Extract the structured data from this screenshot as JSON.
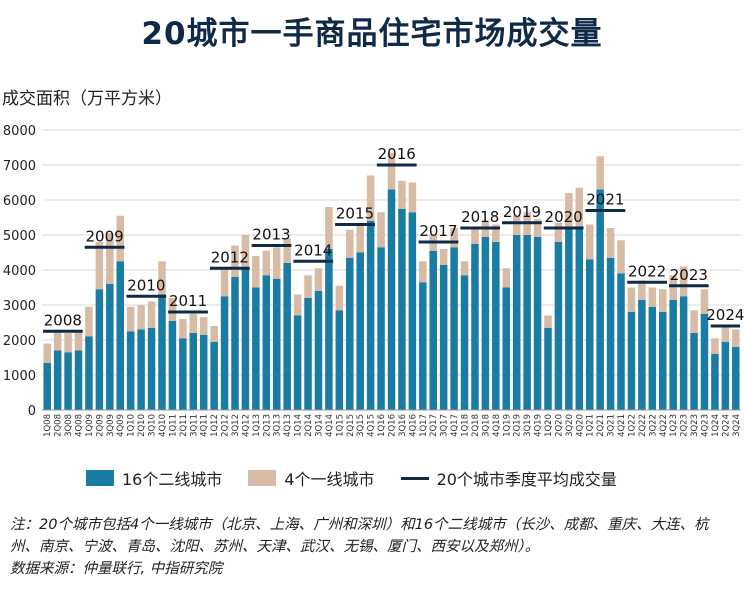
{
  "title": "20城市一手商品住宅市场成交量",
  "ylabel": "成交面积（万平方米）",
  "legend": {
    "tier2": "16个二线城市",
    "tier1": "4个一线城市",
    "avg": "20个城市季度平均成交量"
  },
  "note": {
    "line1": "注：20个城市包括4个一线城市（北京、上海、广州和深圳）和16个二线城市（长沙、成都、重庆、大连、杭州、南京、宁波、青岛、沈阳、苏州、天津、武汉、无锡、厦门、西安以及郑州）。",
    "line2": "数据来源：仲量联行, 中指研究院"
  },
  "colors": {
    "tier2": "#1a7ca3",
    "tier1": "#d8bba5",
    "avg": "#0e2a47",
    "title": "#0e2a47",
    "grid": "#d9d9d9"
  },
  "chart_data": {
    "type": "bar",
    "stacked": true,
    "ylim": [
      0,
      8000
    ],
    "yticks": [
      0,
      1000,
      2000,
      3000,
      4000,
      5000,
      6000,
      7000,
      8000
    ],
    "categories": [
      "1Q08",
      "2Q08",
      "3Q08",
      "4Q08",
      "1Q09",
      "2Q09",
      "3Q09",
      "4Q09",
      "1Q10",
      "2Q10",
      "3Q10",
      "4Q10",
      "1Q11",
      "2Q11",
      "3Q11",
      "4Q11",
      "1Q12",
      "2Q12",
      "3Q12",
      "4Q12",
      "1Q13",
      "2Q13",
      "3Q13",
      "4Q13",
      "1Q14",
      "2Q14",
      "3Q14",
      "4Q14",
      "1Q15",
      "2Q15",
      "3Q15",
      "4Q15",
      "1Q16",
      "2Q16",
      "3Q16",
      "4Q16",
      "1Q17",
      "2Q17",
      "3Q17",
      "4Q17",
      "1Q18",
      "2Q18",
      "3Q18",
      "4Q18",
      "1Q19",
      "2Q19",
      "3Q19",
      "4Q19",
      "1Q20",
      "2Q20",
      "3Q20",
      "4Q20",
      "1Q21",
      "2Q21",
      "3Q21",
      "4Q21",
      "1Q22",
      "2Q22",
      "3Q22",
      "4Q22",
      "1Q23",
      "2Q23",
      "3Q23",
      "4Q23",
      "1Q24",
      "2Q24",
      "3Q24"
    ],
    "series": [
      {
        "name": "16个二线城市",
        "values": [
          1350,
          1700,
          1650,
          1700,
          2100,
          3450,
          3600,
          4250,
          2250,
          2300,
          2350,
          3300,
          2550,
          2050,
          2200,
          2150,
          1950,
          3250,
          3800,
          4050,
          3500,
          3850,
          3750,
          4200,
          2700,
          3200,
          3400,
          4600,
          2850,
          4350,
          4500,
          5400,
          4650,
          6300,
          5750,
          5650,
          3650,
          4550,
          4150,
          4650,
          3850,
          4750,
          4950,
          4800,
          3500,
          5000,
          5000,
          4950,
          2350,
          4800,
          5200,
          5250,
          4300,
          6300,
          4350,
          3900,
          2800,
          3150,
          2950,
          2800,
          3150,
          3250,
          2200,
          2750,
          1600,
          1950,
          1800
        ]
      },
      {
        "name": "4个一线城市",
        "values": [
          550,
          550,
          550,
          550,
          850,
          1350,
          1450,
          1300,
          700,
          700,
          750,
          950,
          650,
          550,
          550,
          500,
          450,
          800,
          900,
          950,
          900,
          700,
          900,
          700,
          600,
          650,
          650,
          1200,
          700,
          800,
          800,
          1300,
          1000,
          1050,
          800,
          850,
          600,
          450,
          450,
          550,
          400,
          450,
          450,
          500,
          550,
          550,
          650,
          500,
          350,
          550,
          1000,
          1100,
          1000,
          950,
          850,
          950,
          700,
          550,
          550,
          650,
          700,
          850,
          650,
          700,
          450,
          450,
          500
        ]
      }
    ],
    "annual_average": [
      {
        "year": "2008",
        "value": 2250
      },
      {
        "year": "2009",
        "value": 4650
      },
      {
        "year": "2010",
        "value": 3250
      },
      {
        "year": "2011",
        "value": 2800
      },
      {
        "year": "2012",
        "value": 4050
      },
      {
        "year": "2013",
        "value": 4700
      },
      {
        "year": "2014",
        "value": 4250
      },
      {
        "year": "2015",
        "value": 5300
      },
      {
        "year": "2016",
        "value": 7000
      },
      {
        "year": "2017",
        "value": 4800
      },
      {
        "year": "2018",
        "value": 5200
      },
      {
        "year": "2019",
        "value": 5350
      },
      {
        "year": "2020",
        "value": 5200
      },
      {
        "year": "2021",
        "value": 5700
      },
      {
        "year": "2022",
        "value": 3650
      },
      {
        "year": "2023",
        "value": 3550
      },
      {
        "year": "2024",
        "value": 2400
      }
    ]
  }
}
